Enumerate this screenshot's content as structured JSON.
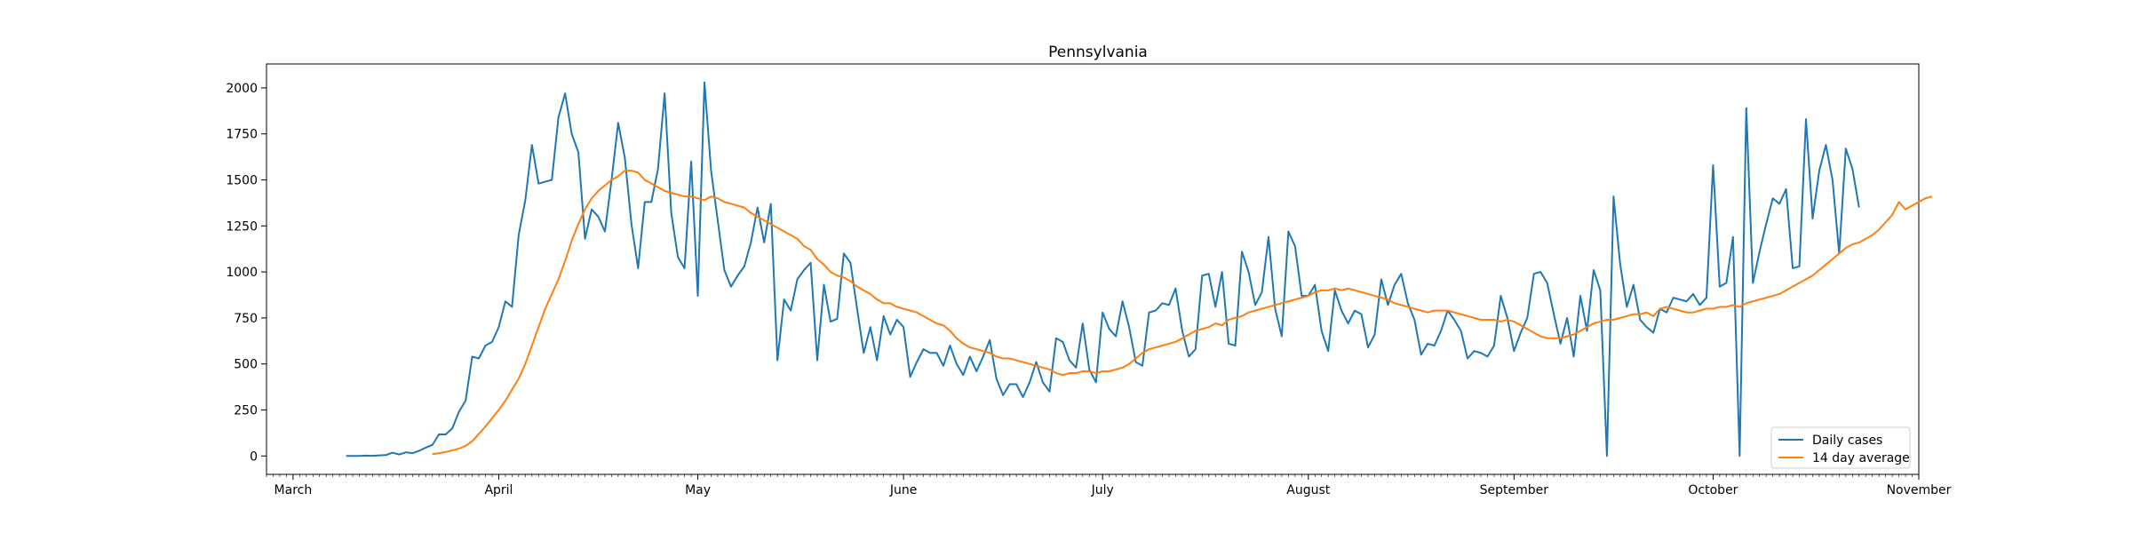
{
  "chart_data": {
    "type": "line",
    "title": "Pennsylvania",
    "xlabel": "",
    "ylabel": "",
    "xlim": [
      "2020-02-26",
      "2020-11-01"
    ],
    "ylim": [
      -100,
      2130
    ],
    "x_ticks": [
      {
        "date": "2020-03-01",
        "label": "March"
      },
      {
        "date": "2020-04-01",
        "label": "April"
      },
      {
        "date": "2020-05-01",
        "label": "May"
      },
      {
        "date": "2020-06-01",
        "label": "June"
      },
      {
        "date": "2020-07-01",
        "label": "July"
      },
      {
        "date": "2020-08-01",
        "label": "August"
      },
      {
        "date": "2020-09-01",
        "label": "September"
      },
      {
        "date": "2020-10-01",
        "label": "October"
      },
      {
        "date": "2020-11-01",
        "label": "November"
      }
    ],
    "y_ticks": [
      0,
      250,
      500,
      750,
      1000,
      1250,
      1500,
      1750,
      2000
    ],
    "legend_position": "lower-right",
    "grid": false,
    "series": [
      {
        "name": "Daily cases",
        "color": "#1f77b4",
        "start_date": "2020-03-09",
        "values": [
          0,
          0,
          0,
          2,
          1,
          3,
          5,
          18,
          8,
          20,
          15,
          28,
          45,
          60,
          118,
          117,
          150,
          240,
          300,
          540,
          530,
          600,
          620,
          700,
          840,
          810,
          1200,
          1390,
          1690,
          1480,
          1490,
          1500,
          1840,
          1970,
          1750,
          1650,
          1180,
          1340,
          1300,
          1220,
          1500,
          1810,
          1620,
          1260,
          1020,
          1380,
          1380,
          1560,
          1970,
          1320,
          1080,
          1020,
          1600,
          870,
          2030,
          1550,
          1280,
          1010,
          920,
          980,
          1030,
          1160,
          1350,
          1160,
          1370,
          520,
          850,
          790,
          960,
          1010,
          1050,
          520,
          930,
          730,
          745,
          1100,
          1050,
          800,
          560,
          700,
          520,
          760,
          660,
          740,
          700,
          430,
          510,
          580,
          560,
          560,
          490,
          600,
          500,
          440,
          540,
          460,
          540,
          630,
          420,
          330,
          390,
          390,
          320,
          400,
          510,
          400,
          350,
          640,
          620,
          520,
          480,
          720,
          470,
          400,
          780,
          690,
          650,
          840,
          700,
          510,
          490,
          780,
          790,
          830,
          820,
          910,
          680,
          540,
          580,
          980,
          990,
          810,
          1000,
          610,
          600,
          1110,
          1000,
          820,
          890,
          1190,
          800,
          650,
          1220,
          1140,
          870,
          870,
          930,
          680,
          570,
          900,
          790,
          720,
          790,
          770,
          590,
          660,
          960,
          820,
          930,
          990,
          830,
          740,
          550,
          610,
          600,
          680,
          790,
          740,
          680,
          530,
          570,
          560,
          540,
          600,
          870,
          750,
          570,
          670,
          750,
          990,
          1000,
          940,
          770,
          610,
          750,
          540,
          870,
          680,
          1010,
          900,
          0,
          1410,
          1040,
          810,
          930,
          740,
          700,
          670,
          800,
          780,
          860,
          850,
          840,
          880,
          820,
          860,
          1580,
          920,
          940,
          1190,
          0,
          1890,
          940,
          1110,
          1260,
          1400,
          1370,
          1450,
          1020,
          1030,
          1830,
          1290,
          1550,
          1690,
          1500,
          1100,
          1670,
          1560,
          1350
        ]
      },
      {
        "name": "14 day average",
        "color": "#ff7f0e",
        "start_date": "2020-03-22",
        "values": [
          10,
          15,
          22,
          30,
          40,
          55,
          80,
          120,
          160,
          205,
          250,
          300,
          360,
          420,
          500,
          600,
          700,
          800,
          880,
          960,
          1060,
          1170,
          1260,
          1340,
          1400,
          1440,
          1470,
          1500,
          1520,
          1550,
          1550,
          1540,
          1500,
          1480,
          1460,
          1440,
          1430,
          1420,
          1410,
          1410,
          1400,
          1390,
          1410,
          1400,
          1380,
          1370,
          1360,
          1350,
          1320,
          1300,
          1280,
          1260,
          1240,
          1220,
          1200,
          1180,
          1140,
          1120,
          1070,
          1040,
          1000,
          980,
          970,
          950,
          920,
          900,
          880,
          850,
          830,
          830,
          810,
          800,
          790,
          780,
          760,
          740,
          720,
          710,
          680,
          640,
          610,
          590,
          580,
          570,
          560,
          540,
          530,
          530,
          520,
          510,
          500,
          490,
          480,
          470,
          450,
          440,
          450,
          450,
          460,
          460,
          450,
          460,
          460,
          470,
          480,
          500,
          530,
          560,
          580,
          590,
          600,
          610,
          620,
          640,
          660,
          680,
          690,
          700,
          720,
          710,
          740,
          750,
          760,
          780,
          790,
          800,
          810,
          820,
          830,
          840,
          850,
          860,
          870,
          890,
          900,
          900,
          910,
          900,
          910,
          900,
          890,
          880,
          870,
          860,
          850,
          830,
          820,
          810,
          800,
          790,
          780,
          790,
          790,
          790,
          780,
          770,
          760,
          750,
          740,
          740,
          740,
          730,
          740,
          730,
          710,
          690,
          670,
          650,
          640,
          640,
          640,
          650,
          660,
          680,
          700,
          720,
          730,
          740,
          740,
          750,
          760,
          770,
          770,
          780,
          760,
          800,
          810,
          800,
          790,
          780,
          780,
          790,
          800,
          800,
          810,
          810,
          820,
          810,
          830,
          840,
          850,
          860,
          870,
          880,
          900,
          920,
          940,
          960,
          980,
          1010,
          1040,
          1070,
          1100,
          1130,
          1150,
          1160,
          1180,
          1200,
          1230,
          1270,
          1310,
          1380,
          1340,
          1360,
          1380,
          1400,
          1410
        ]
      }
    ]
  }
}
